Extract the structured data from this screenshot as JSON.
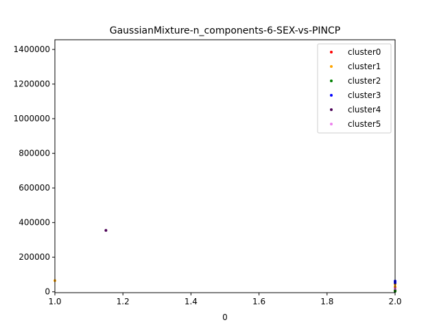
{
  "chart_data": {
    "type": "scatter",
    "title": "GaussianMixture-n_components-6-SEX-vs-PINCP",
    "xlabel": "0",
    "ylabel": "",
    "xlim": [
      1.0,
      2.0
    ],
    "ylim": [
      -5000,
      1456000
    ],
    "x_ticks": [
      1.0,
      1.2,
      1.4,
      1.6,
      1.8,
      2.0
    ],
    "x_tick_labels": [
      "1.0",
      "1.2",
      "1.4",
      "1.6",
      "1.8",
      "2.0"
    ],
    "y_ticks": [
      0,
      200000,
      400000,
      600000,
      800000,
      1000000,
      1200000,
      1400000
    ],
    "y_tick_labels": [
      "0",
      "200000",
      "400000",
      "600000",
      "800000",
      "1000000",
      "1200000",
      "1400000"
    ],
    "grid": false,
    "legend_position": "top-right",
    "series": [
      {
        "name": "cluster0",
        "color": "#ff0000",
        "points": [
          [
            2.0,
            22000
          ],
          [
            2.0,
            8000
          ]
        ]
      },
      {
        "name": "cluster1",
        "color": "#ffa500",
        "points": [
          [
            1.0,
            65000
          ],
          [
            2.0,
            45000
          ],
          [
            2.0,
            30000
          ]
        ]
      },
      {
        "name": "cluster2",
        "color": "#008000",
        "points": [
          [
            2.0,
            12000
          ],
          [
            2.0,
            3000
          ]
        ]
      },
      {
        "name": "cluster3",
        "color": "#0000ff",
        "points": [
          [
            2.0,
            62000
          ],
          [
            2.0,
            52000
          ]
        ]
      },
      {
        "name": "cluster4",
        "color": "#4b0055",
        "points": [
          [
            1.15,
            355000
          ]
        ]
      },
      {
        "name": "cluster5",
        "color": "#ee82ee",
        "points": [
          [
            2.0,
            18000
          ]
        ]
      }
    ]
  }
}
